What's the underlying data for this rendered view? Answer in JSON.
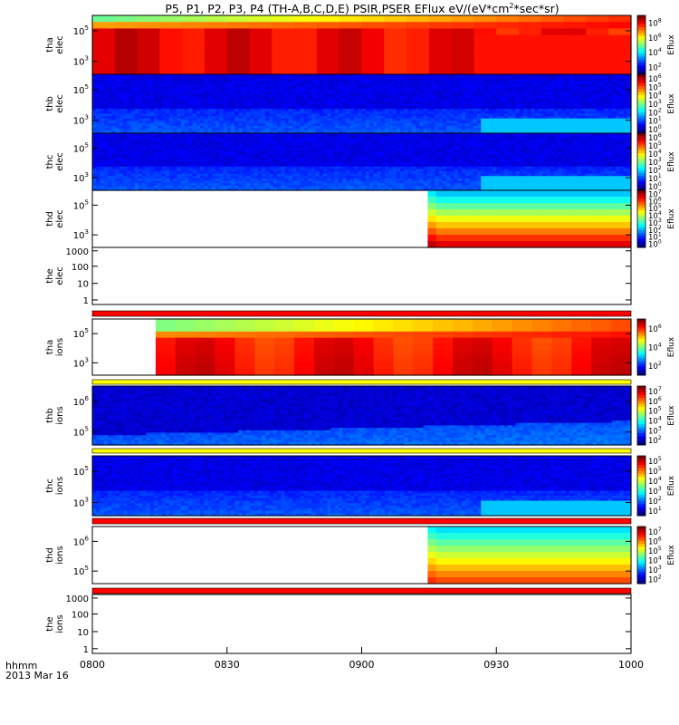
{
  "chart_data": {
    "type": "heatmap",
    "title": "P5, P1, P2, P3, P4 (TH-A,B,C,D,E) PSIR,PSER EFlux eV/(eV*cm",
    "title_sup": "2",
    "title_tail": "*sec*sr)",
    "xlabel_line1": "hhmm",
    "xlabel_line2": "2013 Mar 16",
    "x_ticks": [
      "0800",
      "0830",
      "0900",
      "0930",
      "1000"
    ],
    "x_range": [
      "08:00",
      "10:00"
    ],
    "colorbar_label": "Eflux",
    "panels": [
      {
        "name": "tha_elec",
        "label": [
          "tha",
          "elec"
        ],
        "pattern": "hot_e",
        "coverage": [
          0,
          1
        ],
        "yticks": [
          {
            "base": "10",
            "exp": "5",
            "frac": 0.26
          },
          {
            "base": "10",
            "exp": "3",
            "frac": 0.78
          }
        ],
        "cbar": [
          "10^8",
          "10^6",
          "10^4",
          "10^2"
        ]
      },
      {
        "name": "thb_elec",
        "label": [
          "thb",
          "elec"
        ],
        "pattern": "cold",
        "coverage": [
          0,
          1
        ],
        "yticks": [
          {
            "base": "10",
            "exp": "5",
            "frac": 0.26
          },
          {
            "base": "10",
            "exp": "3",
            "frac": 0.78
          }
        ],
        "cbar": [
          "10^6",
          "10^5",
          "10^4",
          "10^3",
          "10^2",
          "10^1",
          "10^0"
        ]
      },
      {
        "name": "thc_elec",
        "label": [
          "thc",
          "elec"
        ],
        "pattern": "cold",
        "coverage": [
          0,
          1
        ],
        "yticks": [
          {
            "base": "10",
            "exp": "5",
            "frac": 0.26
          },
          {
            "base": "10",
            "exp": "3",
            "frac": 0.78
          }
        ],
        "cbar": [
          "10^6",
          "10^5",
          "10^4",
          "10^3",
          "10^2",
          "10^1",
          "10^0"
        ]
      },
      {
        "name": "thd_elec",
        "label": [
          "thd",
          "elec"
        ],
        "pattern": "grad_e",
        "coverage": [
          0.6225,
          1
        ],
        "yticks": [
          {
            "base": "10",
            "exp": "5",
            "frac": 0.26
          },
          {
            "base": "10",
            "exp": "3",
            "frac": 0.78
          }
        ],
        "cbar": [
          "10^7",
          "10^6",
          "10^5",
          "10^4",
          "10^3",
          "10^2",
          "10^1",
          "10^0"
        ]
      },
      {
        "name": "the_elec",
        "label": [
          "the",
          "elec"
        ],
        "pattern": "empty",
        "coverage": [
          0,
          0
        ],
        "yticks": [
          {
            "label": "1000",
            "frac": 0.06
          },
          {
            "label": "100",
            "frac": 0.33
          },
          {
            "label": "10",
            "frac": 0.63
          },
          {
            "label": "1",
            "frac": 0.92
          }
        ],
        "cbar": []
      },
      {
        "name": "tha_ions",
        "label": [
          "tha",
          "ions"
        ],
        "pattern": "hot_i",
        "coverage": [
          0.1175,
          1
        ],
        "yticks": [
          {
            "base": "10",
            "exp": "5",
            "frac": 0.26
          },
          {
            "base": "10",
            "exp": "3",
            "frac": 0.78
          }
        ],
        "cbar": [
          "10^6",
          "10^4",
          "10^2"
        ]
      },
      {
        "name": "thb_ions",
        "label": [
          "thb",
          "ions"
        ],
        "pattern": "cold_i",
        "coverage": [
          0,
          1
        ],
        "yticks": [
          {
            "base": "10",
            "exp": "6",
            "frac": 0.26
          },
          {
            "base": "10",
            "exp": "5",
            "frac": 0.78
          }
        ],
        "cbar": [
          "10^7",
          "10^6",
          "10^5",
          "10^4",
          "10^3",
          "10^2"
        ]
      },
      {
        "name": "thc_ions",
        "label": [
          "thc",
          "ions"
        ],
        "pattern": "cold",
        "coverage": [
          0,
          1
        ],
        "yticks": [
          {
            "base": "10",
            "exp": "5",
            "frac": 0.26
          },
          {
            "base": "10",
            "exp": "3",
            "frac": 0.78
          }
        ],
        "cbar": [
          "10^5",
          "10^5",
          "10^4",
          "10^3",
          "10^2",
          "10^1"
        ]
      },
      {
        "name": "thd_ions",
        "label": [
          "thd",
          "ions"
        ],
        "pattern": "grad_i",
        "coverage": [
          0.6225,
          1
        ],
        "yticks": [
          {
            "base": "10",
            "exp": "6",
            "frac": 0.26
          },
          {
            "base": "10",
            "exp": "5",
            "frac": 0.78
          }
        ],
        "cbar": [
          "10^7",
          "10^6",
          "10^5",
          "10^4",
          "10^3",
          "10^2"
        ]
      },
      {
        "name": "the_ions",
        "label": [
          "the",
          "ions"
        ],
        "pattern": "empty",
        "coverage": [
          0,
          0
        ],
        "yticks": [
          {
            "label": "1000",
            "frac": 0.06
          },
          {
            "label": "100",
            "frac": 0.33
          },
          {
            "label": "10",
            "frac": 0.63
          },
          {
            "label": "1",
            "frac": 0.92
          }
        ],
        "cbar": []
      }
    ],
    "separator_bars": [
      {
        "after": "the_elec",
        "color": "#ff0000"
      },
      {
        "after": "tha_ions",
        "color": "#ffff00"
      },
      {
        "after": "thb_ions",
        "color": "#ffff00"
      },
      {
        "after": "thc_ions",
        "color": "#ff0000"
      },
      {
        "after": "thd_ions",
        "color": "#ff0000"
      }
    ]
  }
}
